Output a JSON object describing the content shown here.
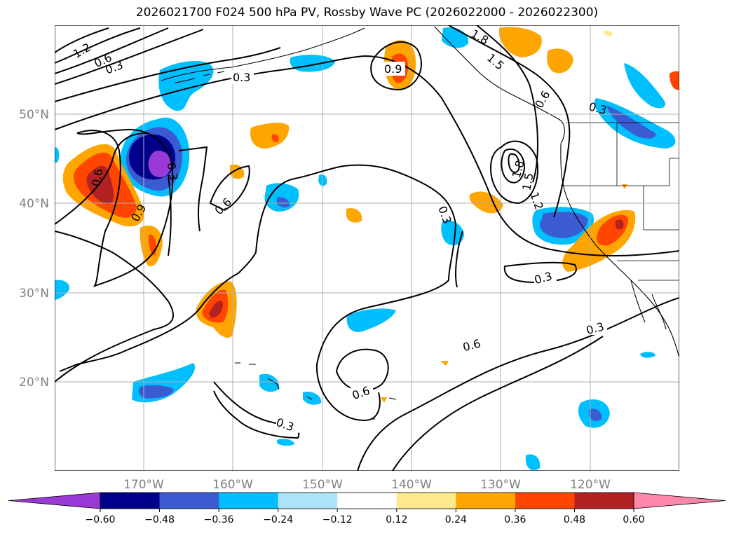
{
  "title": "2026021700 F024 500 hPa PV, Rossby Wave PC (2026022000 - 2026022300)",
  "lat_labels": [
    "50°N",
    "40°N",
    "30°N",
    "20°N"
  ],
  "lon_labels": [
    "170°W",
    "160°W",
    "150°W",
    "140°W",
    "130°W",
    "120°W"
  ],
  "contour_labels": [
    "1.8",
    "1.5",
    "1.2",
    "0.9",
    "0.6",
    "0.3"
  ],
  "colorbar": {
    "ticks": [
      "−0.60",
      "−0.48",
      "−0.36",
      "−0.24",
      "−0.12",
      "0.12",
      "0.24",
      "0.36",
      "0.48",
      "0.60"
    ],
    "colors": [
      "#9a3ad6",
      "#00008b",
      "#3b5bd2",
      "#00bfff",
      "#ade3fa",
      "#ffffff",
      "#ffe98c",
      "#ffa500",
      "#ff4500",
      "#b22222",
      "#ff88aa"
    ]
  }
}
